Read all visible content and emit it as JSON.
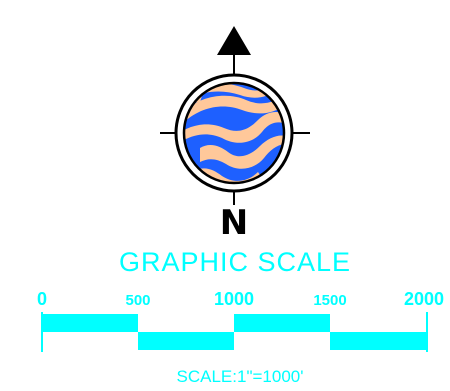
{
  "north_arrow": {
    "letter": "N",
    "colors": {
      "stroke": "#000000",
      "globe_blue": "#1e60ff",
      "globe_tan": "#ffc89a"
    }
  },
  "graphic_scale": {
    "title": "GRAPHIC SCALE",
    "tick_labels": [
      "0",
      "500",
      "1000",
      "1500",
      "2000"
    ],
    "caption": "SCALE:1\"=1000'",
    "bar_color": "#00ffff",
    "text_color": "#00ffff"
  }
}
